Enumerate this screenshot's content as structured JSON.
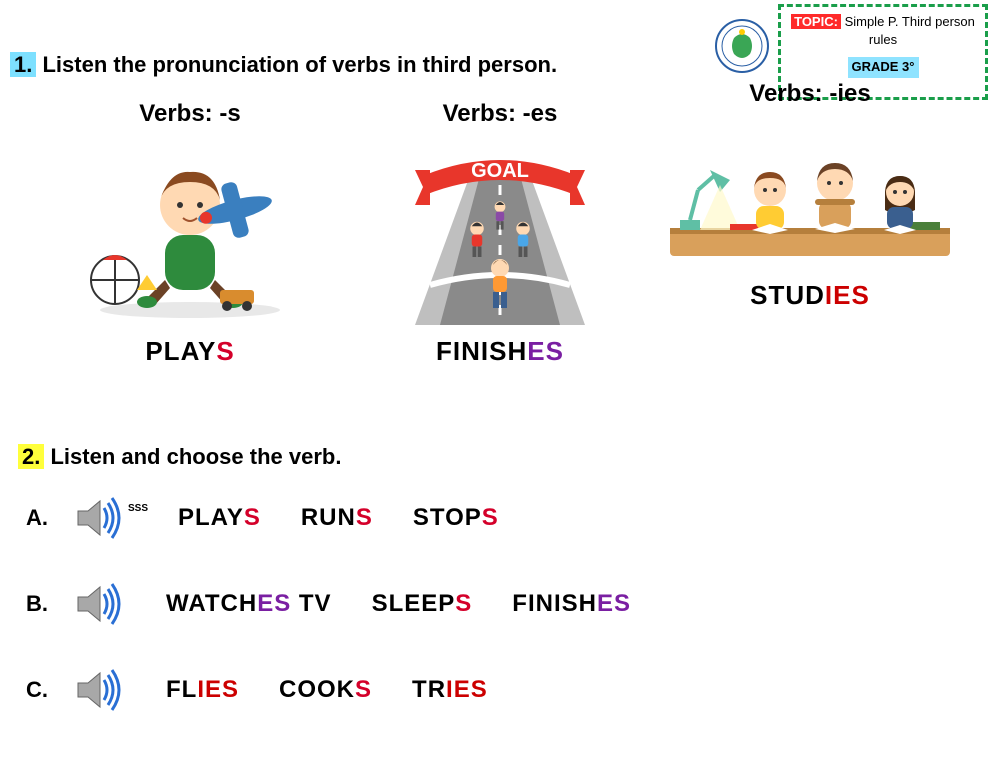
{
  "header": {
    "topic_label": "TOPIC:",
    "topic_text": "Simple P. Third person rules",
    "grade_label": "GRADE 3°"
  },
  "instruction1": {
    "number": "1.",
    "text": "Listen the pronunciation of verbs in third person."
  },
  "instruction2": {
    "number": "2.",
    "text": "Listen and choose the verb."
  },
  "columns": {
    "s": {
      "head": "Verbs: -s",
      "stem": "PLAY",
      "suffix": "S"
    },
    "es": {
      "head": "Verbs: -es",
      "stem": "FINISH",
      "suffix": "ES"
    },
    "ies": {
      "head": "Verbs: -ies",
      "stem": "STUD",
      "suffix": "IES"
    }
  },
  "rows": {
    "a": {
      "letter": "A.",
      "sss": "SSS",
      "opts": [
        {
          "stem": "PLAY",
          "suffix": "S",
          "cls": "suf-s"
        },
        {
          "stem": "RUN",
          "suffix": "S",
          "cls": "suf-s"
        },
        {
          "stem": "STOP",
          "suffix": "S",
          "cls": "suf-s"
        }
      ]
    },
    "b": {
      "letter": "B.",
      "opts": [
        {
          "stem": "WATCH",
          "suffix": "ES",
          "tail": " TV",
          "cls": "suf-es"
        },
        {
          "stem": "SLEEP",
          "suffix": "S",
          "cls": "suf-s"
        },
        {
          "stem": "FINISH",
          "suffix": "ES",
          "cls": "suf-es"
        }
      ]
    },
    "c": {
      "letter": "C.",
      "opts": [
        {
          "stem": "FL",
          "suffix": "IES",
          "cls": "suf-ies"
        },
        {
          "stem": "COOK",
          "suffix": "S",
          "cls": "suf-s"
        },
        {
          "stem": "TR",
          "suffix": "IES",
          "cls": "suf-ies"
        }
      ]
    }
  },
  "colors": {
    "accent_cyan": "#7de0ff",
    "accent_yellow": "#ffff3b",
    "suffix_s": "#d4002a",
    "suffix_es": "#7a1fa2",
    "suffix_ies": "#cc0000",
    "dash_green": "#1a9e4a",
    "topic_red": "#ff2a2a",
    "grade_blue": "#8fe3ff"
  }
}
